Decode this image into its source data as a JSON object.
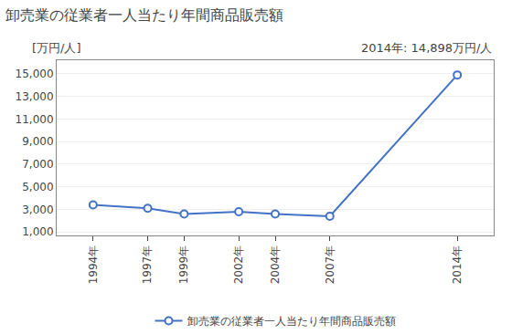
{
  "chart_data": {
    "type": "line",
    "title": "卸売業の従業者一人当たり年間商品販売額",
    "ylabel": "[万円/人]",
    "annotations": [
      "2014年: 14,898万円/人"
    ],
    "x": [
      1994,
      1997,
      1999,
      2002,
      2004,
      2007,
      2014
    ],
    "series": [
      {
        "name": "卸売業の従業者一人当たり年間商品販売額",
        "color": "#4472C4",
        "marker": "circle",
        "values": [
          3400,
          3100,
          2600,
          2800,
          2600,
          2400,
          14898
        ]
      }
    ],
    "xlim": [
      1992,
      2016
    ],
    "xticks": [
      {
        "value": 1994,
        "label": "1994年"
      },
      {
        "value": 1997,
        "label": "1997年"
      },
      {
        "value": 1999,
        "label": "1999年"
      },
      {
        "value": 2002,
        "label": "2002年"
      },
      {
        "value": 2004,
        "label": "2004年"
      },
      {
        "value": 2007,
        "label": "2007年"
      },
      {
        "value": 2014,
        "label": "2014年"
      }
    ],
    "ylim": [
      700,
      16200
    ],
    "yticks": [
      {
        "value": 1000,
        "label": "1,000"
      },
      {
        "value": 3000,
        "label": "3,000"
      },
      {
        "value": 5000,
        "label": "5,000"
      },
      {
        "value": 7000,
        "label": "7,000"
      },
      {
        "value": 9000,
        "label": "9,000"
      },
      {
        "value": 11000,
        "label": "11,000"
      },
      {
        "value": 13000,
        "label": "13,000"
      },
      {
        "value": 15000,
        "label": "15,000"
      }
    ],
    "grid": true,
    "legend": "bottom"
  }
}
